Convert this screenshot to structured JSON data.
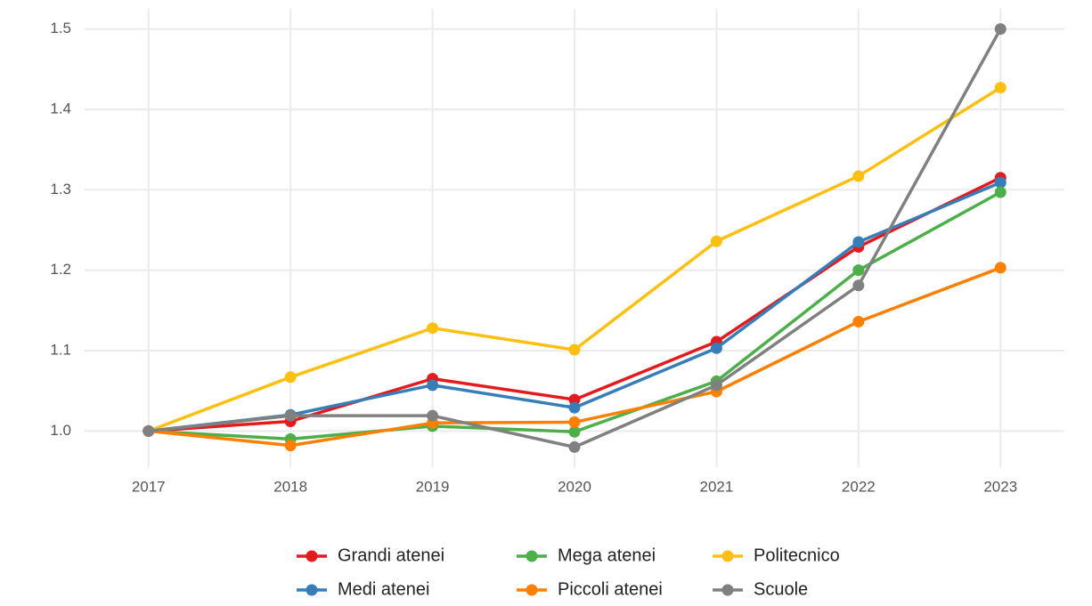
{
  "chart_data": {
    "type": "line",
    "x": [
      2017,
      2018,
      2019,
      2020,
      2021,
      2022,
      2023
    ],
    "xlim": [
      2016.55,
      2023.45
    ],
    "xticks": [
      2017,
      2018,
      2019,
      2020,
      2021,
      2022,
      2023
    ],
    "ylim": [
      0.955,
      1.525
    ],
    "yticks": [
      {
        "value": 1,
        "label": "1.0"
      },
      1.1,
      1.2,
      1.3,
      1.4,
      1.5
    ],
    "grid": true,
    "legend": "bottom",
    "series": [
      {
        "name": "Grandi atenei",
        "color": "#e41a1c",
        "values": [
          1.0,
          1.012,
          1.065,
          1.039,
          1.111,
          1.229,
          1.315
        ]
      },
      {
        "name": "Medi atenei",
        "color": "#377eb8",
        "values": [
          1.0,
          1.02,
          1.057,
          1.029,
          1.103,
          1.235,
          1.309
        ]
      },
      {
        "name": "Mega atenei",
        "color": "#4daf4a",
        "values": [
          1.0,
          0.99,
          1.006,
          0.999,
          1.062,
          1.2,
          1.297
        ]
      },
      {
        "name": "Piccoli atenei",
        "color": "#ff7f00",
        "values": [
          1.0,
          0.982,
          1.01,
          1.011,
          1.049,
          1.136,
          1.203
        ]
      },
      {
        "name": "Politecnico",
        "color": "#fdc010",
        "values": [
          1.0,
          1.067,
          1.128,
          1.101,
          1.236,
          1.317,
          1.427
        ]
      },
      {
        "name": "Scuole",
        "color": "#808080",
        "values": [
          1.0,
          1.019,
          1.019,
          0.98,
          1.057,
          1.181,
          1.5
        ]
      }
    ]
  }
}
